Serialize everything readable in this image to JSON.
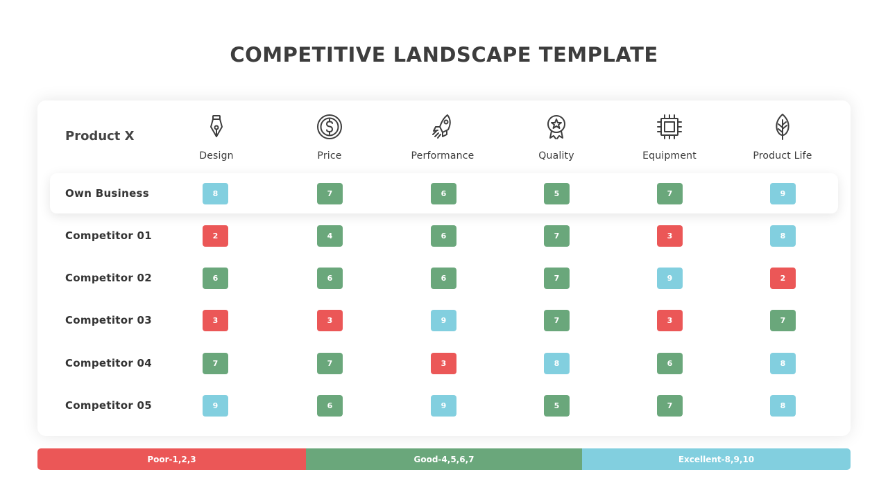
{
  "title": "COMPETITIVE LANDSCAPE TEMPLATE",
  "product_label": "Product X",
  "columns": [
    {
      "label": "Design",
      "icon": "pen-nib-icon"
    },
    {
      "label": "Price",
      "icon": "dollar-coin-icon"
    },
    {
      "label": "Performance",
      "icon": "rocket-icon"
    },
    {
      "label": "Quality",
      "icon": "award-badge-icon"
    },
    {
      "label": "Equipment",
      "icon": "microchip-icon"
    },
    {
      "label": "Product Life",
      "icon": "leaf-icon"
    }
  ],
  "rows": [
    {
      "name": "Own Business",
      "scores": [
        "8",
        "7",
        "6",
        "5",
        "7",
        "9"
      ],
      "highlighted": true
    },
    {
      "name": "Competitor 01",
      "scores": [
        "2",
        "4",
        "6",
        "7",
        "3",
        "8"
      ]
    },
    {
      "name": "Competitor 02",
      "scores": [
        "6",
        "6",
        "6",
        "7",
        "9",
        "2"
      ]
    },
    {
      "name": "Competitor 03",
      "scores": [
        "3",
        "3",
        "9",
        "7",
        "3",
        "7"
      ]
    },
    {
      "name": "Competitor 04",
      "scores": [
        "7",
        "7",
        "3",
        "8",
        "6",
        "8"
      ]
    },
    {
      "name": "Competitor 05",
      "scores": [
        "9",
        "6",
        "9",
        "5",
        "7",
        "8"
      ]
    }
  ],
  "legend": {
    "poor": "Poor-1,2,3",
    "good": "Good-4,5,6,7",
    "excellent": "Excellent-8,9,10"
  },
  "colors": {
    "poor": "#eb5757",
    "good": "#6aa77b",
    "excellent": "#82cfdf"
  }
}
